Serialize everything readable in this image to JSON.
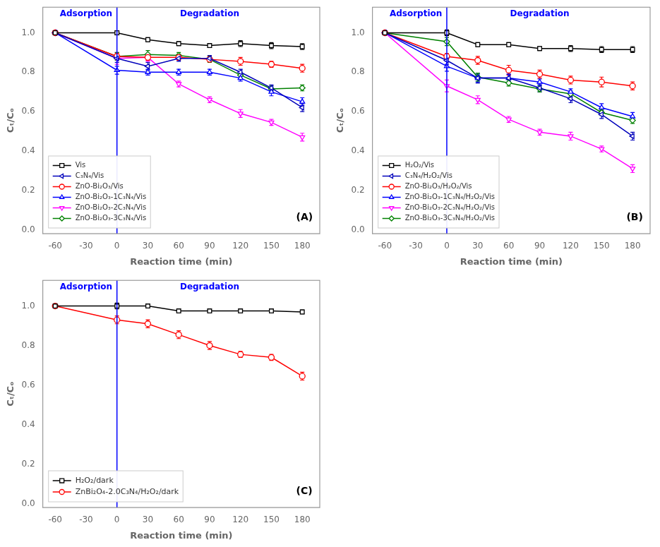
{
  "chart_data": [
    {
      "type": "line",
      "title": "(A)",
      "xlabel": "Reaction time (min)",
      "ylabel": "Cₜ/Cₒ",
      "x": [
        -60,
        0,
        30,
        60,
        90,
        120,
        150,
        180
      ],
      "series": [
        {
          "name": "Vis",
          "color": "black",
          "marker": "square",
          "values": [
            1.0,
            1.0,
            0.965,
            0.945,
            0.935,
            0.945,
            0.935,
            0.93
          ],
          "errors": [
            0.0,
            0.01,
            0.01,
            0.01,
            0.01,
            0.015,
            0.015,
            0.015
          ]
        },
        {
          "name": "C₃N₄/Vis",
          "color": "#0000bb",
          "marker": "triangle-left",
          "values": [
            1.0,
            0.87,
            0.83,
            0.87,
            0.87,
            0.8,
            0.72,
            0.62
          ],
          "errors": [
            0.0,
            0.02,
            0.02,
            0.015,
            0.015,
            0.015,
            0.015,
            0.02
          ]
        },
        {
          "name": "ZnO-Bi₂O₃/Vis",
          "color": "red",
          "marker": "circle",
          "values": [
            1.0,
            0.88,
            0.875,
            0.875,
            0.865,
            0.855,
            0.84,
            0.82
          ],
          "errors": [
            0.0,
            0.015,
            0.015,
            0.015,
            0.015,
            0.02,
            0.015,
            0.02
          ]
        },
        {
          "name": "ZnO-Bi₂O₃-1C₃N₄/Vis",
          "color": "blue",
          "marker": "triangle-up",
          "values": [
            1.0,
            0.81,
            0.8,
            0.8,
            0.8,
            0.77,
            0.7,
            0.65
          ],
          "errors": [
            0.0,
            0.02,
            0.015,
            0.015,
            0.015,
            0.015,
            0.02,
            0.02
          ]
        },
        {
          "name": "ZnO-Bi₂O₃-2C₃N₄/Vis",
          "color": "magenta",
          "marker": "triangle-down",
          "values": [
            1.0,
            0.87,
            0.875,
            0.74,
            0.66,
            0.59,
            0.545,
            0.47
          ],
          "errors": [
            0.0,
            0.03,
            0.02,
            0.015,
            0.015,
            0.02,
            0.015,
            0.02
          ]
        },
        {
          "name": "ZnO-Bi₂O₃-3C₃N₄/Vis",
          "color": "green",
          "marker": "diamond",
          "values": [
            1.0,
            0.88,
            0.89,
            0.885,
            0.865,
            0.785,
            0.715,
            0.72
          ],
          "errors": [
            0.0,
            0.02,
            0.02,
            0.015,
            0.015,
            0.015,
            0.015,
            0.015
          ]
        }
      ],
      "annotations": [
        {
          "text": "Adsorption",
          "x": -30,
          "y": 1.075,
          "color": "blue"
        },
        {
          "text": "Degradation",
          "x": 90,
          "y": 1.075,
          "color": "blue"
        }
      ],
      "vlines": [
        {
          "x": 0,
          "color": "blue"
        }
      ],
      "xlim": [
        -72,
        197
      ],
      "xticks": [
        -60,
        -30,
        0,
        30,
        60,
        90,
        120,
        150,
        180
      ],
      "ylim": [
        -0.02,
        1.13
      ],
      "yticks": [
        {
          "value": 0.0,
          "label": "0.0"
        },
        0.2,
        0.4,
        0.6,
        0.8,
        {
          "value": 1.0,
          "label": "1.0"
        }
      ],
      "grid": false,
      "legend": "lower left"
    },
    {
      "type": "line",
      "title": "(B)",
      "xlabel": "Reaction time (min)",
      "ylabel": "Cₜ/Cₒ",
      "x": [
        -60,
        0,
        30,
        60,
        90,
        120,
        150,
        180
      ],
      "series": [
        {
          "name": "H₂O₂/Vis",
          "color": "black",
          "marker": "square",
          "values": [
            1.0,
            1.0,
            0.94,
            0.94,
            0.92,
            0.92,
            0.915,
            0.915
          ],
          "errors": [
            0.0,
            0.015,
            0.01,
            0.01,
            0.01,
            0.015,
            0.015,
            0.015
          ]
        },
        {
          "name": "C₃N₄/H₂O₂/Vis",
          "color": "#0000bb",
          "marker": "triangle-left",
          "values": [
            1.0,
            0.86,
            0.77,
            0.77,
            0.72,
            0.665,
            0.585,
            0.475
          ],
          "errors": [
            0.0,
            0.02,
            0.025,
            0.02,
            0.02,
            0.02,
            0.02,
            0.02
          ]
        },
        {
          "name": "ZnO-Bi₂O₃/H₂O₂/Vis",
          "color": "red",
          "marker": "circle",
          "values": [
            1.0,
            0.88,
            0.86,
            0.81,
            0.79,
            0.76,
            0.75,
            0.73
          ],
          "errors": [
            0.0,
            0.015,
            0.02,
            0.025,
            0.02,
            0.02,
            0.025,
            0.02
          ]
        },
        {
          "name": "ZnO-Bi₂O₃-1C₃N₄/H₂O₂/Vis",
          "color": "blue",
          "marker": "triangle-up",
          "values": [
            1.0,
            0.83,
            0.77,
            0.77,
            0.75,
            0.7,
            0.62,
            0.575
          ],
          "errors": [
            0.0,
            0.025,
            0.02,
            0.02,
            0.015,
            0.015,
            0.02,
            0.02
          ]
        },
        {
          "name": "ZnO-Bi₂O₃-2C₃N₄/H₂O₂/Vis",
          "color": "magenta",
          "marker": "triangle-down",
          "values": [
            1.0,
            0.73,
            0.66,
            0.56,
            0.495,
            0.475,
            0.41,
            0.31
          ],
          "errors": [
            0.0,
            0.03,
            0.02,
            0.015,
            0.015,
            0.02,
            0.015,
            0.02
          ]
        },
        {
          "name": "ZnO-Bi₂O₃-3C₃N₄/H₂O₂/Vis",
          "color": "green",
          "marker": "diamond",
          "values": [
            1.0,
            0.955,
            0.775,
            0.745,
            0.715,
            0.69,
            0.595,
            0.555
          ],
          "errors": [
            0.0,
            0.02,
            0.02,
            0.015,
            0.015,
            0.015,
            0.015,
            0.015
          ]
        }
      ],
      "annotations": [
        {
          "text": "Adsorption",
          "x": -30,
          "y": 1.075,
          "color": "blue"
        },
        {
          "text": "Degradation",
          "x": 90,
          "y": 1.075,
          "color": "blue"
        }
      ],
      "vlines": [
        {
          "x": 0,
          "color": "blue"
        }
      ],
      "xlim": [
        -72,
        197
      ],
      "xticks": [
        -60,
        -30,
        0,
        30,
        60,
        90,
        120,
        150,
        180
      ],
      "ylim": [
        -0.02,
        1.13
      ],
      "yticks": [
        {
          "value": 0.0,
          "label": "0.0"
        },
        0.2,
        0.4,
        0.6,
        0.8,
        {
          "value": 1.0,
          "label": "1.0"
        }
      ],
      "grid": false,
      "legend": "lower left"
    },
    {
      "type": "line",
      "title": "(C)",
      "xlabel": "Reaction time (min)",
      "ylabel": "Cₜ/Cₒ",
      "x": [
        -60,
        0,
        30,
        60,
        90,
        120,
        150,
        180
      ],
      "series": [
        {
          "name": "H₂O₂/dark",
          "color": "black",
          "marker": "square",
          "values": [
            1.0,
            1.0,
            1.0,
            0.975,
            0.975,
            0.975,
            0.975,
            0.97
          ],
          "errors": [
            0.0,
            0.015,
            0.01,
            0.01,
            0.01,
            0.01,
            0.01,
            0.01
          ]
        },
        {
          "name": "ZnBi₂O₄-2.0C₃N₄/H₂O₂/dark",
          "color": "red",
          "marker": "circle",
          "values": [
            1.0,
            0.93,
            0.91,
            0.855,
            0.8,
            0.755,
            0.74,
            0.645
          ],
          "errors": [
            0.0,
            0.02,
            0.02,
            0.02,
            0.02,
            0.015,
            0.015,
            0.02
          ]
        }
      ],
      "annotations": [
        {
          "text": "Adsorption",
          "x": -30,
          "y": 1.075,
          "color": "blue"
        },
        {
          "text": "Degradation",
          "x": 90,
          "y": 1.075,
          "color": "blue"
        }
      ],
      "vlines": [
        {
          "x": 0,
          "color": "blue"
        }
      ],
      "xlim": [
        -72,
        197
      ],
      "xticks": [
        -60,
        -30,
        0,
        30,
        60,
        90,
        120,
        150,
        180
      ],
      "ylim": [
        -0.02,
        1.13
      ],
      "yticks": [
        {
          "value": 0.0,
          "label": "0.0"
        },
        0.2,
        0.4,
        0.6,
        0.8,
        {
          "value": 1.0,
          "label": "1.0"
        }
      ],
      "grid": false,
      "legend": "lower left"
    }
  ]
}
